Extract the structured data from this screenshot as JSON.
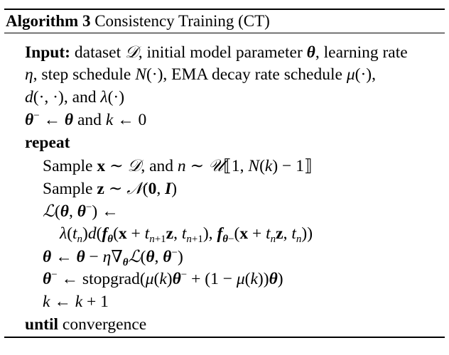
{
  "algorithm": {
    "label": "Algorithm 3",
    "name": "Consistency Training (CT)"
  },
  "input": {
    "keyword": "Input:",
    "text_1": "dataset",
    "text_2": ", initial model parameter",
    "text_3": ", learning rate",
    "text_4": ", step schedule",
    "text_5": ", EMA decay rate schedule",
    "text_6": ", and"
  },
  "init": {
    "and": "and"
  },
  "keywords": {
    "repeat": "repeat",
    "until": "until",
    "convergence": "convergence",
    "sample": "Sample",
    "and": ", and",
    "stopgrad": "stopgrad"
  }
}
